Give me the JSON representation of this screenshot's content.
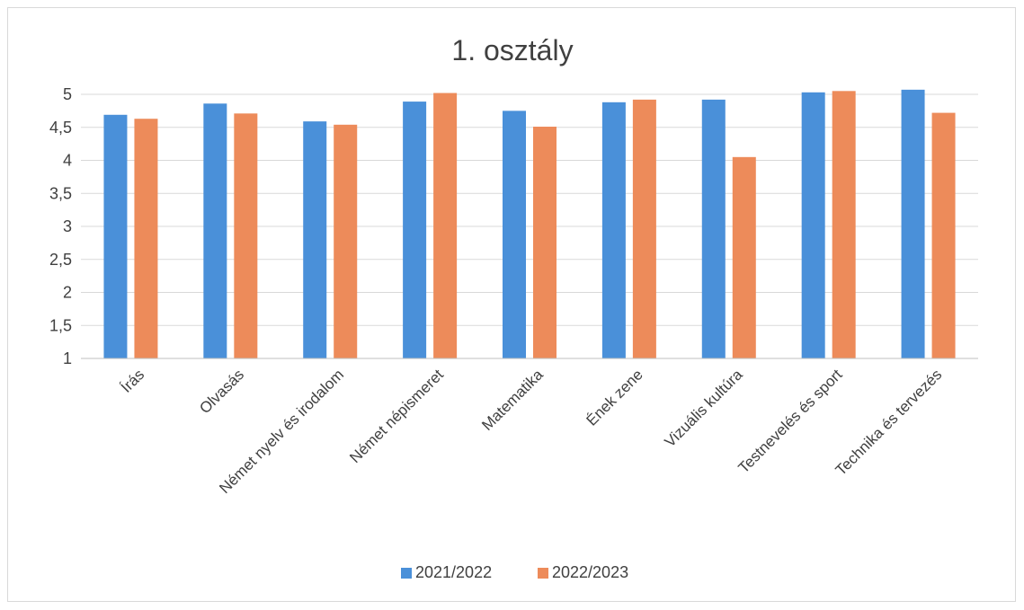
{
  "chart_data": {
    "type": "bar",
    "title": "1. osztály",
    "categories": [
      "Írás",
      "Olvasás",
      "Német nyelv és irodalom",
      "Német népismeret",
      "Matematika",
      "Ének zene",
      "Vizuális kultúra",
      "Testnevelés és sport",
      "Technika és tervezés"
    ],
    "series": [
      {
        "name": "2021/2022",
        "color": "#4a90d9",
        "values": [
          4.69,
          4.86,
          4.59,
          4.89,
          4.75,
          4.88,
          4.92,
          5.03,
          5.07
        ]
      },
      {
        "name": "2022/2023",
        "color": "#ed8b5a",
        "values": [
          4.63,
          4.71,
          4.54,
          5.02,
          4.51,
          4.92,
          4.05,
          5.05,
          4.72
        ]
      }
    ],
    "ylim": [
      1,
      5
    ],
    "yticks": [
      "1",
      "1,5",
      "2",
      "2,5",
      "3",
      "3,5",
      "4",
      "4,5",
      "5"
    ],
    "grid": true,
    "legend_position": "bottom"
  }
}
